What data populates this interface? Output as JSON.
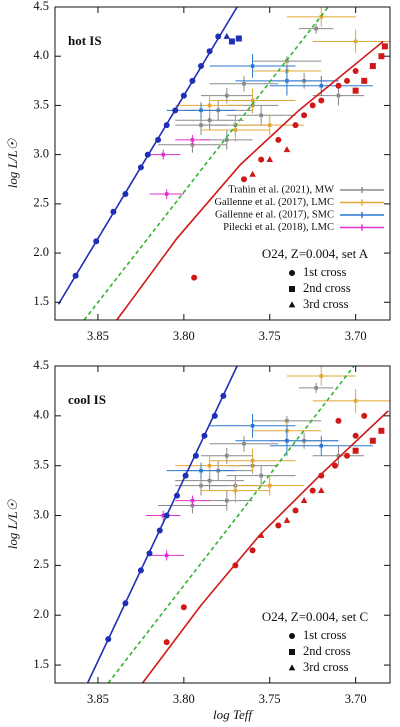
{
  "chart_data": [
    {
      "type": "scatter",
      "label": "hot IS",
      "model_label": "O24, Z=0.004, set A",
      "ylabel": "log L/L☉",
      "xlim": [
        3.875,
        3.68
      ],
      "ylim": [
        1.32,
        4.5
      ],
      "xticks": [
        3.85,
        {
          "value": 3.8,
          "label": "3.80"
        },
        3.75,
        {
          "value": 3.7,
          "label": "3.70"
        }
      ],
      "yticks": [
        1.5,
        {
          "value": 2,
          "label": "2.0"
        },
        2.5,
        {
          "value": 3,
          "label": "3.0"
        },
        3.5,
        {
          "value": 4,
          "label": "4.0"
        },
        4.5
      ],
      "legend": true,
      "lines": [
        {
          "color": "#1f2fb5",
          "dash": false,
          "x": [
            3.873,
            3.769
          ],
          "values": [
            1.48,
            4.5
          ]
        },
        {
          "color": "#2fb52f",
          "dash": true,
          "x": [
            3.858,
            3.716
          ],
          "values": [
            1.32,
            4.5
          ]
        },
        {
          "color": "#d01818",
          "dash": false,
          "x": [
            3.839,
            3.804,
            3.767,
            3.733,
            3.684
          ],
          "values": [
            1.32,
            2.15,
            2.9,
            3.45,
            4.15
          ]
        }
      ],
      "cross_legend": [
        {
          "name": "1st cross",
          "marker": "circle"
        },
        {
          "name": "2nd cross",
          "marker": "square"
        },
        {
          "name": "3rd cross",
          "marker": "triangle"
        }
      ],
      "series": [
        {
          "name": "Trahin et al. (2021), MW",
          "color": "#8a8a8a",
          "type": "errorbar",
          "x": [
            3.723,
            3.74,
            3.765,
            3.775,
            3.78,
            3.785,
            3.77,
            3.76,
            3.79,
            3.795,
            3.775,
            3.755,
            3.73,
            3.71
          ],
          "values": [
            4.28,
            3.95,
            3.72,
            3.6,
            3.45,
            3.35,
            3.3,
            3.5,
            3.3,
            3.1,
            3.15,
            3.4,
            3.75,
            3.6
          ],
          "xerr": [
            0.01,
            0.02,
            0.02,
            0.015,
            0.02,
            0.02,
            0.02,
            0.015,
            0.015,
            0.02,
            0.015,
            0.02,
            0.02,
            0.015
          ],
          "yerr": [
            0.05,
            0.05,
            0.08,
            0.08,
            0.1,
            0.1,
            0.1,
            0.08,
            0.1,
            0.08,
            0.1,
            0.1,
            0.08,
            0.1
          ]
        },
        {
          "name": "Gallenne et al. (2017), LMC",
          "color": "#e0a838",
          "type": "errorbar",
          "x": [
            3.72,
            3.7,
            3.74,
            3.76,
            3.785,
            3.77,
            3.75
          ],
          "values": [
            4.4,
            4.15,
            3.85,
            3.55,
            3.5,
            3.25,
            3.3
          ],
          "xerr": [
            0.02,
            0.025,
            0.02,
            0.025,
            0.02,
            0.02,
            0.02
          ],
          "yerr": [
            0.1,
            0.12,
            0.1,
            0.12,
            0.1,
            0.12,
            0.1
          ]
        },
        {
          "name": "Gallenne et al. (2017), SMC",
          "color": "#2a78d0",
          "type": "errorbar",
          "x": [
            3.76,
            3.74,
            3.72,
            3.79
          ],
          "values": [
            3.9,
            3.75,
            3.7,
            3.45
          ],
          "xerr": [
            0.025,
            0.03,
            0.03,
            0.02
          ],
          "yerr": [
            0.12,
            0.15,
            0.1,
            0.08
          ]
        },
        {
          "name": "Pilecki et al. (2018), LMC",
          "color": "#e030d0",
          "type": "errorbar",
          "x": [
            3.812,
            3.81,
            3.795
          ],
          "values": [
            3.0,
            2.6,
            3.15
          ],
          "xerr": [
            0.01,
            0.01,
            0.01
          ],
          "yerr": [
            0.05,
            0.05,
            0.05
          ]
        },
        {
          "type": "points",
          "color": "#1f2fb5",
          "marker": "circle",
          "x": [
            3.863,
            3.851,
            3.841,
            3.834,
            3.825,
            3.821,
            3.815,
            3.81,
            3.805,
            3.8,
            3.795,
            3.79,
            3.785,
            3.78
          ],
          "values": [
            1.77,
            2.12,
            2.42,
            2.6,
            2.87,
            3.0,
            3.15,
            3.3,
            3.45,
            3.6,
            3.75,
            3.9,
            4.05,
            4.2
          ]
        },
        {
          "type": "points",
          "color": "#1f2fb5",
          "marker": "square",
          "x": [
            3.772,
            3.768
          ],
          "values": [
            4.15,
            4.18
          ]
        },
        {
          "type": "points",
          "color": "#1f2fb5",
          "marker": "triangle",
          "x": [
            3.775
          ],
          "values": [
            4.2
          ]
        },
        {
          "type": "points",
          "color": "#d01818",
          "marker": "circle",
          "x": [
            3.794,
            3.765,
            3.755,
            3.745,
            3.735,
            3.73,
            3.725,
            3.72,
            3.71,
            3.705,
            3.7
          ],
          "values": [
            1.75,
            2.75,
            2.95,
            3.15,
            3.3,
            3.4,
            3.5,
            3.55,
            3.7,
            3.75,
            3.85
          ]
        },
        {
          "type": "points",
          "color": "#d01818",
          "marker": "square",
          "x": [
            3.7,
            3.695,
            3.69,
            3.685,
            3.683
          ],
          "values": [
            3.65,
            3.75,
            3.9,
            4.0,
            4.1
          ]
        },
        {
          "type": "points",
          "color": "#d01818",
          "marker": "triangle",
          "x": [
            3.76,
            3.75,
            3.74
          ],
          "values": [
            2.8,
            2.95,
            3.05
          ]
        }
      ]
    },
    {
      "type": "scatter",
      "label": "cool IS",
      "model_label": "O24, Z=0.004, set C",
      "ylabel": "log L/L☉",
      "xlabel": "log Teff",
      "xlim": [
        3.875,
        3.68
      ],
      "ylim": [
        1.32,
        4.5
      ],
      "xticks": [
        3.85,
        {
          "value": 3.8,
          "label": "3.80"
        },
        3.75,
        {
          "value": 3.7,
          "label": "3.70"
        }
      ],
      "yticks": [
        1.5,
        {
          "value": 2,
          "label": "2.0"
        },
        2.5,
        {
          "value": 3,
          "label": "3.0"
        },
        3.5,
        {
          "value": 4,
          "label": "4.0"
        },
        4.5
      ],
      "legend": false,
      "lines": [
        {
          "color": "#1f2fb5",
          "dash": false,
          "x": [
            3.856,
            3.769
          ],
          "values": [
            1.32,
            4.5
          ]
        },
        {
          "color": "#2fb52f",
          "dash": true,
          "x": [
            3.844,
            3.701
          ],
          "values": [
            1.32,
            4.5
          ]
        },
        {
          "color": "#d01818",
          "dash": false,
          "x": [
            3.824,
            3.79,
            3.756,
            3.721,
            3.681
          ],
          "values": [
            1.32,
            2.1,
            2.8,
            3.4,
            4.05
          ]
        }
      ],
      "cross_legend": [
        {
          "name": "1st cross",
          "marker": "circle"
        },
        {
          "name": "2nd cross",
          "marker": "square"
        },
        {
          "name": "3rd cross",
          "marker": "triangle"
        }
      ],
      "series": [
        {
          "name": "Trahin et al. (2021), MW",
          "color": "#8a8a8a",
          "type": "errorbar",
          "x": [
            3.723,
            3.74,
            3.765,
            3.775,
            3.78,
            3.785,
            3.77,
            3.76,
            3.79,
            3.795,
            3.775,
            3.755,
            3.73,
            3.71
          ],
          "values": [
            4.28,
            3.95,
            3.72,
            3.6,
            3.45,
            3.35,
            3.3,
            3.5,
            3.3,
            3.1,
            3.15,
            3.4,
            3.75,
            3.6
          ],
          "xerr": [
            0.01,
            0.02,
            0.02,
            0.015,
            0.02,
            0.02,
            0.02,
            0.015,
            0.015,
            0.02,
            0.015,
            0.02,
            0.02,
            0.015
          ],
          "yerr": [
            0.05,
            0.05,
            0.08,
            0.08,
            0.1,
            0.1,
            0.1,
            0.08,
            0.1,
            0.08,
            0.1,
            0.1,
            0.08,
            0.1
          ]
        },
        {
          "name": "Gallenne et al. (2017), LMC",
          "color": "#e0a838",
          "type": "errorbar",
          "x": [
            3.72,
            3.7,
            3.74,
            3.76,
            3.785,
            3.77,
            3.75
          ],
          "values": [
            4.4,
            4.15,
            3.85,
            3.55,
            3.5,
            3.25,
            3.3
          ],
          "xerr": [
            0.02,
            0.025,
            0.02,
            0.025,
            0.02,
            0.02,
            0.02
          ],
          "yerr": [
            0.1,
            0.12,
            0.1,
            0.12,
            0.1,
            0.12,
            0.1
          ]
        },
        {
          "name": "Gallenne et al. (2017), SMC",
          "color": "#2a78d0",
          "type": "errorbar",
          "x": [
            3.76,
            3.74,
            3.72,
            3.79
          ],
          "values": [
            3.9,
            3.75,
            3.7,
            3.45
          ],
          "xerr": [
            0.025,
            0.03,
            0.03,
            0.02
          ],
          "yerr": [
            0.12,
            0.15,
            0.1,
            0.08
          ]
        },
        {
          "name": "Pilecki et al. (2018), LMC",
          "color": "#e030d0",
          "type": "errorbar",
          "x": [
            3.812,
            3.81,
            3.795
          ],
          "values": [
            3.0,
            2.6,
            3.15
          ],
          "xerr": [
            0.01,
            0.01,
            0.01
          ],
          "yerr": [
            0.05,
            0.05,
            0.05
          ]
        },
        {
          "type": "points",
          "color": "#1f2fb5",
          "marker": "circle",
          "x": [
            3.844,
            3.834,
            3.825,
            3.82,
            3.814,
            3.81,
            3.804,
            3.799,
            3.793,
            3.788,
            3.782,
            3.777
          ],
          "values": [
            1.76,
            2.12,
            2.45,
            2.62,
            2.85,
            3.0,
            3.2,
            3.4,
            3.6,
            3.8,
            4.0,
            4.2
          ]
        },
        {
          "type": "points",
          "color": "#d01818",
          "marker": "circle",
          "x": [
            3.81,
            3.8,
            3.77,
            3.76,
            3.745,
            3.735,
            3.725,
            3.72,
            3.712,
            3.705,
            3.7,
            3.71,
            3.695
          ],
          "values": [
            1.73,
            2.08,
            2.5,
            2.65,
            2.9,
            3.05,
            3.25,
            3.4,
            3.5,
            3.6,
            3.8,
            3.95,
            4.0
          ]
        },
        {
          "type": "points",
          "color": "#d01818",
          "marker": "square",
          "x": [
            3.7,
            3.69,
            3.685
          ],
          "values": [
            3.65,
            3.75,
            3.85
          ]
        },
        {
          "type": "points",
          "color": "#d01818",
          "marker": "triangle",
          "x": [
            3.755,
            3.74,
            3.73,
            3.72
          ],
          "values": [
            2.8,
            2.95,
            3.15,
            3.25
          ]
        }
      ]
    }
  ]
}
